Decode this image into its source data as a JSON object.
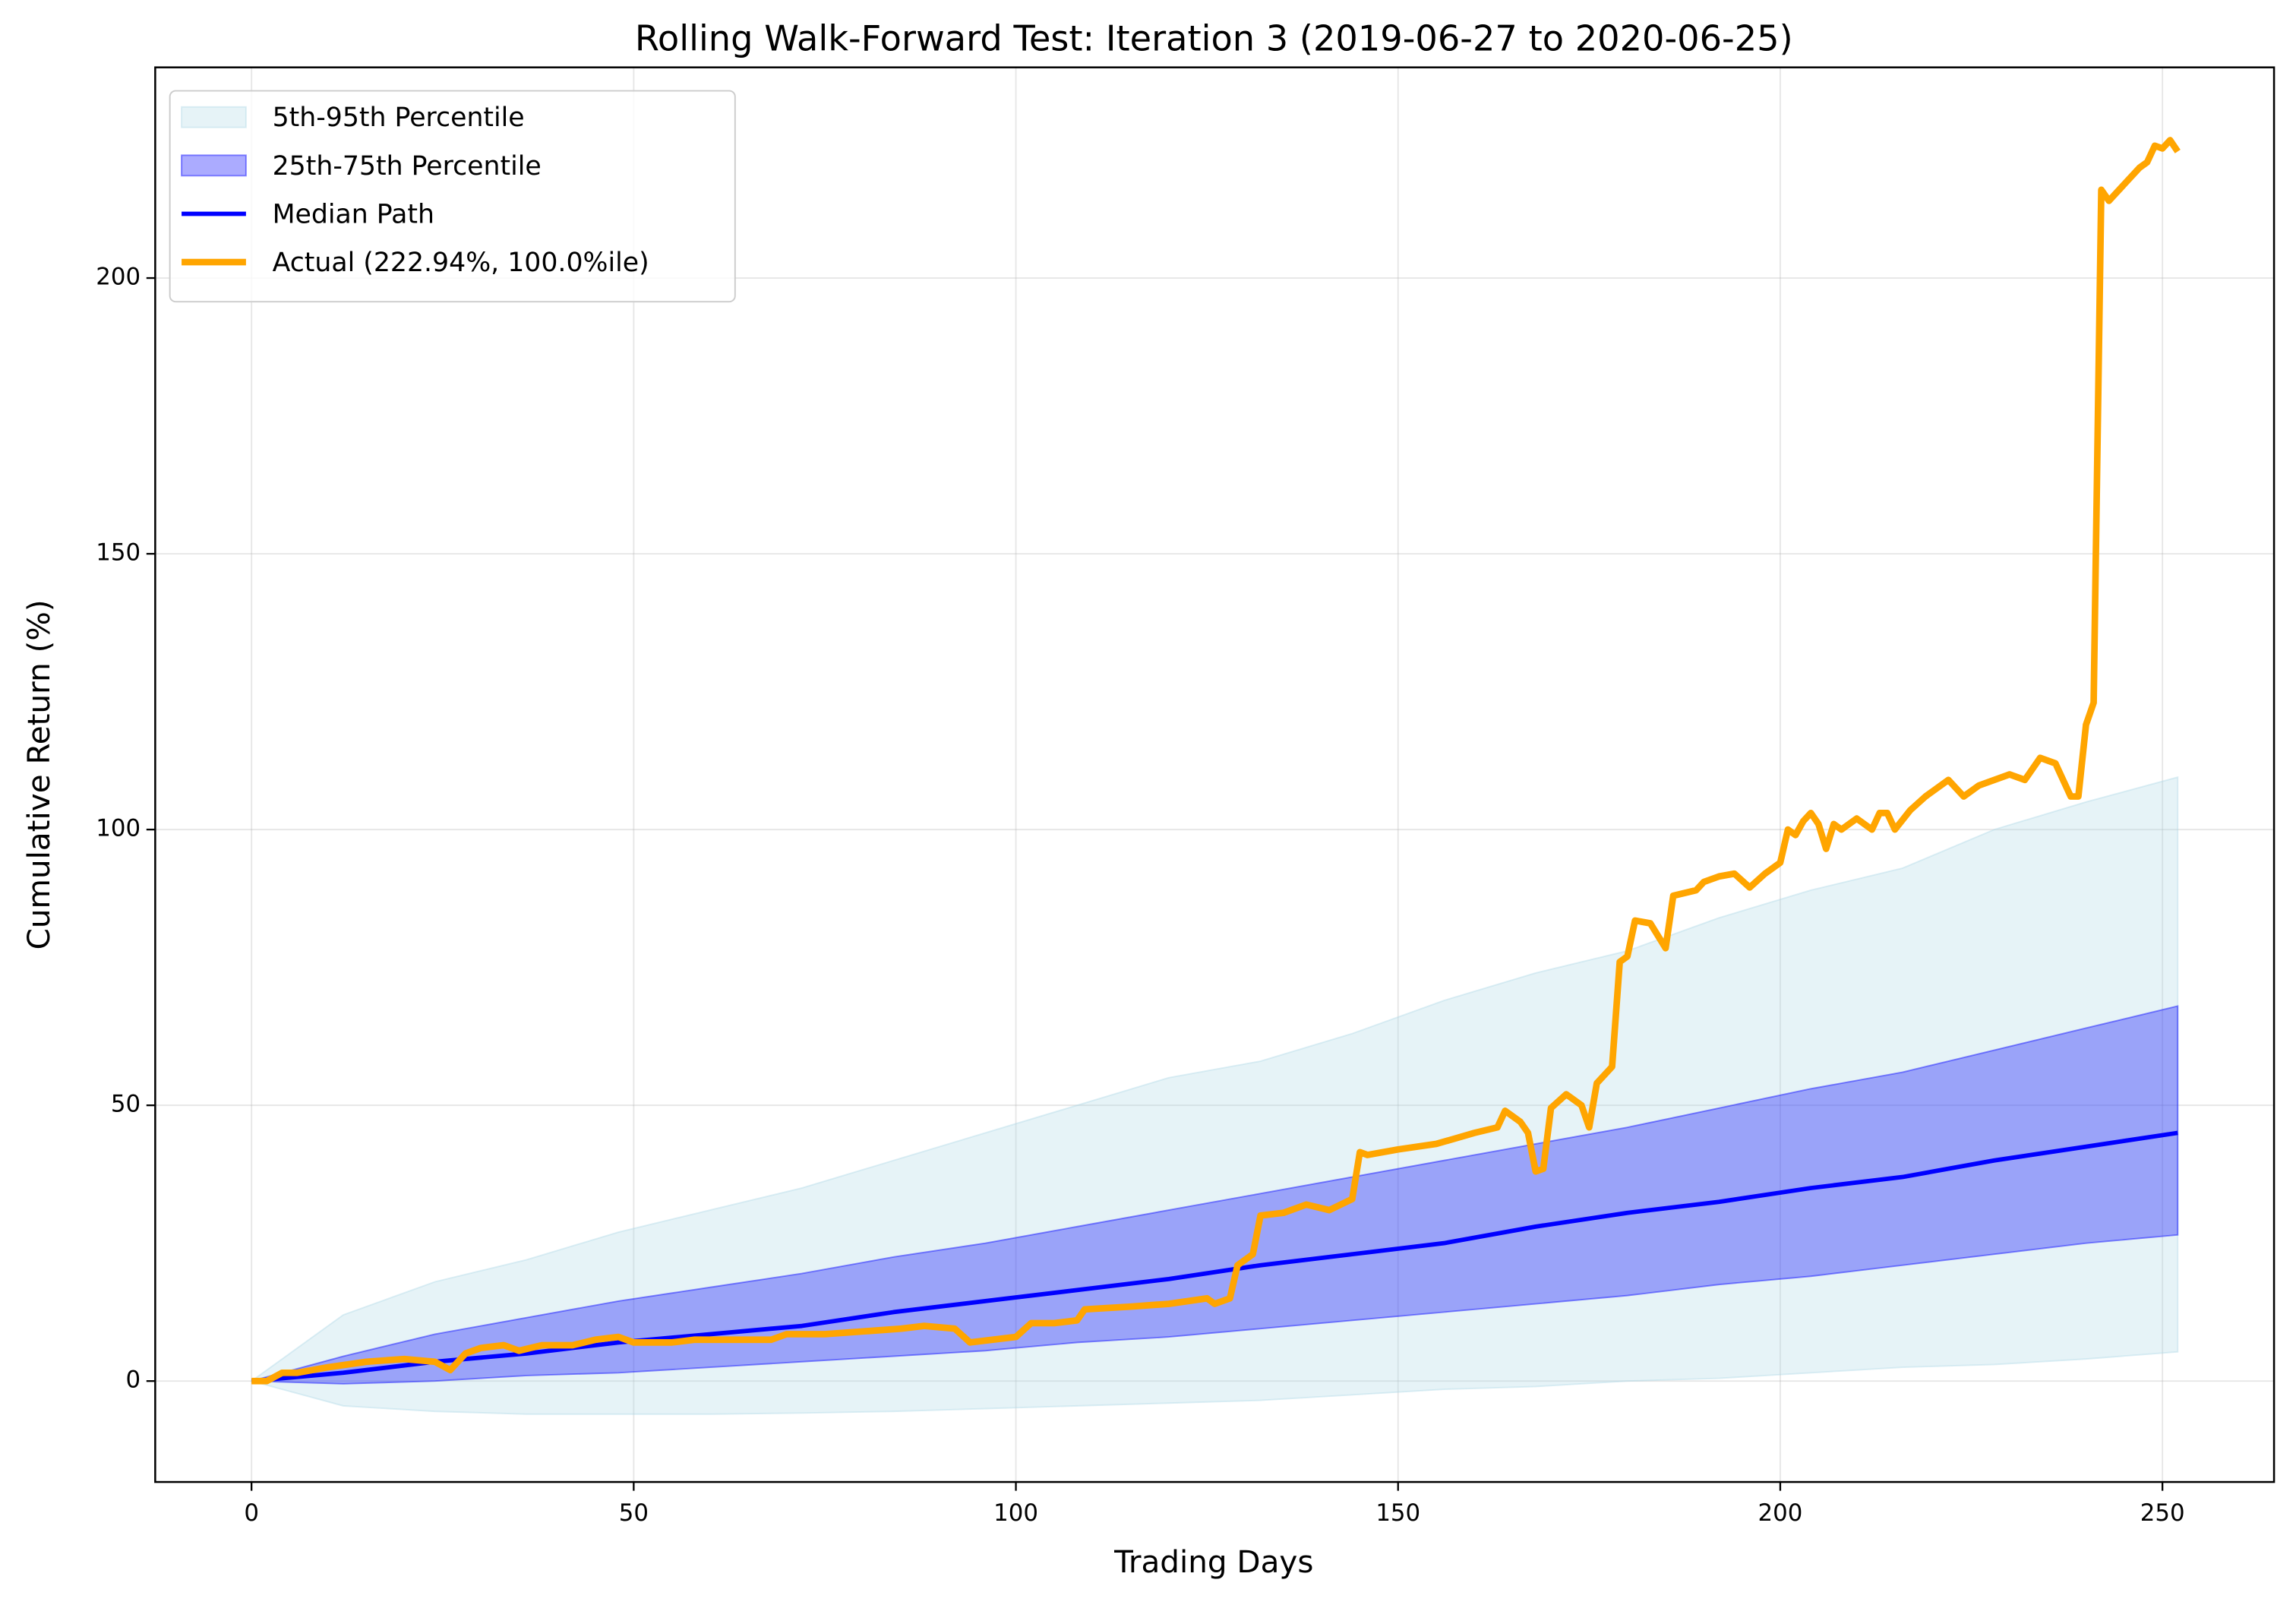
{
  "chart_data": {
    "type": "line",
    "title": "Rolling Walk-Forward Test: Iteration 3 (2019-06-27 to 2020-06-25)",
    "x_label": "Trading Days",
    "y_label": "Cumulative Return (%)",
    "xlim": [
      -12.6,
      264.6
    ],
    "ylim": [
      -18.3,
      238.2
    ],
    "xticks": [
      0,
      50,
      100,
      150,
      200,
      250
    ],
    "yticks": [
      0,
      50,
      100,
      150,
      200
    ],
    "grid": true,
    "legend": "upper-left",
    "series": [
      {
        "name": "5th-95th Percentile",
        "color": "#add8e6",
        "x": [
          0,
          12,
          24,
          36,
          48,
          60,
          72,
          84,
          96,
          108,
          120,
          132,
          144,
          156,
          168,
          180,
          192,
          204,
          216,
          228,
          240,
          252
        ],
        "lower": [
          0,
          -4.5,
          -5.5,
          -6,
          -6,
          -6,
          -5.8,
          -5.5,
          -5,
          -4.5,
          -4,
          -3.5,
          -2.5,
          -1.5,
          -1,
          0,
          0.5,
          1.5,
          2.5,
          3,
          4,
          5.3
        ],
        "upper": [
          0,
          12,
          18,
          22,
          27,
          31,
          35,
          40,
          45,
          50,
          55,
          58,
          63,
          69,
          74,
          78,
          84,
          89,
          93,
          100,
          105,
          109.5
        ]
      },
      {
        "name": "25th-75th Percentile",
        "color": "#0000ff",
        "x": [
          0,
          12,
          24,
          36,
          48,
          60,
          72,
          84,
          96,
          108,
          120,
          132,
          144,
          156,
          168,
          180,
          192,
          204,
          216,
          228,
          240,
          252
        ],
        "lower": [
          0,
          -0.5,
          0,
          1,
          1.5,
          2.5,
          3.5,
          4.5,
          5.5,
          7,
          8,
          9.5,
          11,
          12.5,
          14,
          15.5,
          17.5,
          19,
          21,
          23,
          25,
          26.5
        ],
        "upper": [
          0,
          4.5,
          8.5,
          11.5,
          14.5,
          17,
          19.5,
          22.5,
          25,
          28,
          31,
          34,
          37,
          40,
          43,
          46,
          49.5,
          53,
          56,
          60,
          64,
          68
        ]
      },
      {
        "name": "Median Path",
        "color": "#0000ff",
        "x": [
          0,
          12,
          24,
          36,
          48,
          60,
          72,
          84,
          96,
          108,
          120,
          132,
          144,
          156,
          168,
          180,
          192,
          204,
          216,
          228,
          240,
          252
        ],
        "values": [
          0,
          1.5,
          3.5,
          5,
          7,
          8.5,
          10,
          12.5,
          14.5,
          16.5,
          18.5,
          21,
          23,
          25,
          28,
          30.5,
          32.5,
          35,
          37,
          40,
          42.5,
          45
        ]
      },
      {
        "name": "Actual (222.94%, 100.0%ile)",
        "color": "#ffa500",
        "x": [
          0,
          2,
          4,
          6,
          10,
          15,
          20,
          24,
          26,
          28,
          30,
          33,
          35,
          38,
          42,
          45,
          48,
          50,
          55,
          58,
          65,
          68,
          70,
          75,
          80,
          85,
          88,
          92,
          94,
          100,
          102,
          105,
          108,
          109,
          115,
          120,
          125,
          126,
          128,
          129,
          131,
          132,
          135,
          138,
          141,
          144,
          145,
          146,
          150,
          155,
          160,
          163,
          164,
          166,
          167,
          168,
          169,
          170,
          172,
          174,
          175,
          176,
          178,
          179,
          180,
          181,
          183,
          185,
          186,
          189,
          190,
          192,
          194,
          196,
          198,
          200,
          201,
          202,
          203,
          204,
          205,
          206,
          207,
          208,
          210,
          212,
          213,
          214,
          215,
          217,
          219,
          222,
          224,
          226,
          230,
          232,
          234,
          236,
          238,
          239,
          240,
          241,
          242,
          243,
          245,
          247,
          248,
          249,
          250,
          251,
          252
        ],
        "values": [
          0,
          0,
          1.5,
          1.5,
          2.5,
          3.5,
          4,
          3.5,
          2,
          5,
          6,
          6.5,
          5.5,
          6.5,
          6.5,
          7.5,
          8,
          7,
          7,
          7.5,
          7.5,
          7.5,
          8.5,
          8.5,
          9,
          9.5,
          10,
          9.5,
          7,
          8,
          10.5,
          10.5,
          11,
          13,
          13.5,
          14,
          15,
          14,
          15,
          21,
          23,
          30,
          30.5,
          32,
          31,
          33,
          41.5,
          41,
          42,
          43,
          45,
          46,
          49,
          47,
          45,
          38,
          38.5,
          49.5,
          52,
          50,
          46,
          54,
          57,
          76,
          77,
          83.5,
          83,
          78.5,
          88,
          89,
          90.5,
          91.5,
          92,
          89.5,
          92,
          94,
          100,
          99,
          101.5,
          103,
          101,
          96.5,
          101,
          100,
          102,
          100,
          103,
          103,
          100,
          103.5,
          106,
          109,
          106,
          108,
          110,
          109,
          113,
          112,
          106,
          106,
          119,
          123,
          216,
          214,
          217,
          220,
          221,
          224,
          223.5,
          225,
          222.94
        ]
      }
    ]
  }
}
